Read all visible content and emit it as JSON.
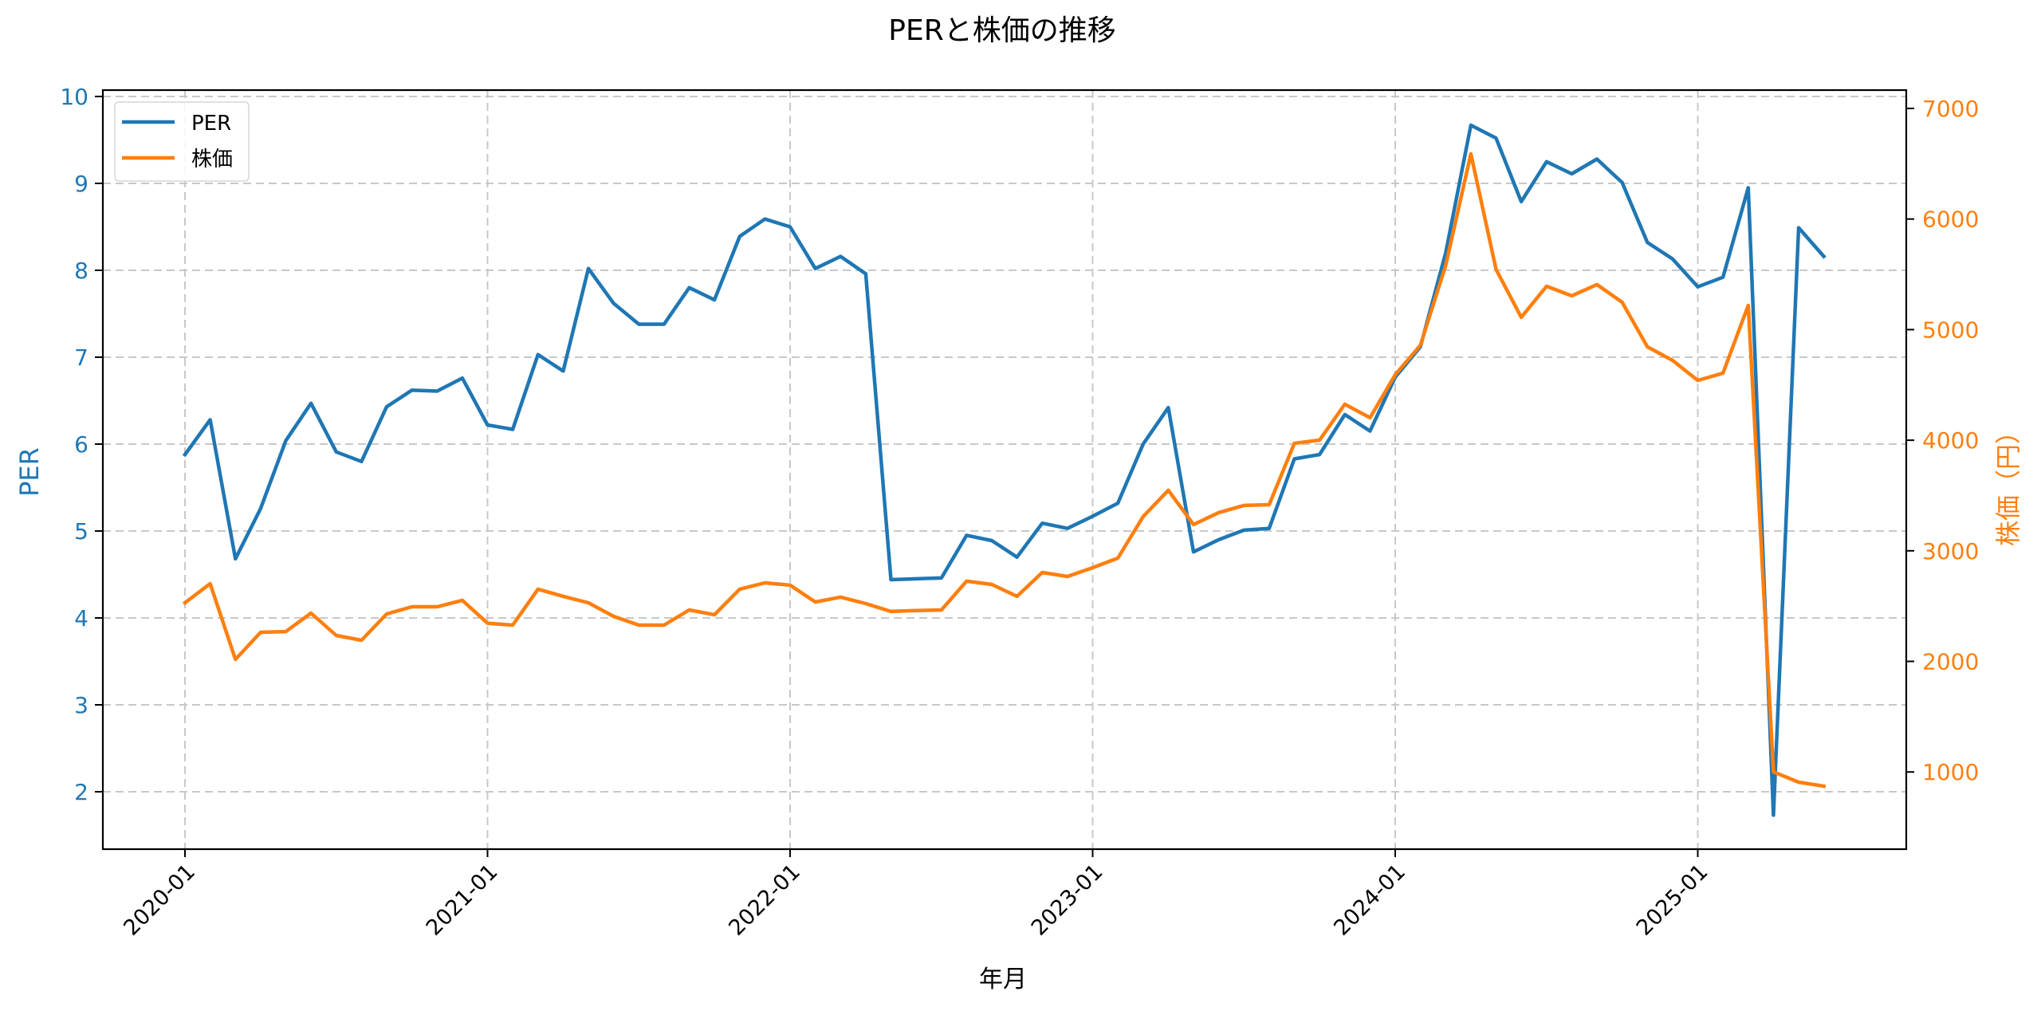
{
  "chart_data": {
    "type": "line",
    "title": "PERと株価の推移",
    "xlabel": "年月",
    "ylabel_left": "PER",
    "ylabel_right": "株価（円）",
    "x_tick_labels": [
      "2020-01",
      "2021-01",
      "2022-01",
      "2023-01",
      "2024-01",
      "2025-01"
    ],
    "y_left_ticks": [
      2,
      3,
      4,
      5,
      6,
      7,
      8,
      9,
      10
    ],
    "y_right_ticks": [
      1000,
      2000,
      3000,
      4000,
      5000,
      6000,
      7000
    ],
    "ylim_left": [
      1.34,
      10.07
    ],
    "ylim_right": [
      302,
      7166
    ],
    "grid": true,
    "grid_style": "dashed",
    "legend_position": "upper left",
    "colors": {
      "per": "#1f77b4",
      "price": "#ff7f0e",
      "grid": "#c8c8c8",
      "axis": "#000000"
    },
    "x": [
      "2020-01",
      "2020-02",
      "2020-03",
      "2020-04",
      "2020-05",
      "2020-06",
      "2020-07",
      "2020-08",
      "2020-09",
      "2020-10",
      "2020-11",
      "2020-12",
      "2021-01",
      "2021-02",
      "2021-03",
      "2021-04",
      "2021-05",
      "2021-06",
      "2021-07",
      "2021-08",
      "2021-09",
      "2021-10",
      "2021-11",
      "2021-12",
      "2022-01",
      "2022-02",
      "2022-03",
      "2022-04",
      "2022-05",
      "2022-06",
      "2022-07",
      "2022-08",
      "2022-09",
      "2022-10",
      "2022-11",
      "2022-12",
      "2023-01",
      "2023-02",
      "2023-03",
      "2023-04",
      "2023-05",
      "2023-06",
      "2023-07",
      "2023-08",
      "2023-09",
      "2023-10",
      "2023-11",
      "2023-12",
      "2024-01",
      "2024-02",
      "2024-03",
      "2024-04",
      "2024-05",
      "2024-06",
      "2024-07",
      "2024-08",
      "2024-09",
      "2024-10",
      "2024-11",
      "2024-12",
      "2025-01",
      "2025-02",
      "2025-03",
      "2025-04",
      "2025-05",
      "2025-06"
    ],
    "series": [
      {
        "name": "PER",
        "axis": "left",
        "values": [
          5.88,
          6.28,
          4.68,
          5.26,
          6.04,
          6.47,
          5.91,
          5.8,
          6.43,
          6.62,
          6.61,
          6.76,
          6.22,
          6.17,
          7.03,
          6.84,
          8.02,
          7.62,
          7.38,
          7.38,
          7.8,
          7.66,
          8.39,
          8.59,
          8.5,
          8.02,
          8.16,
          7.96,
          4.44,
          4.45,
          4.46,
          4.95,
          4.89,
          4.7,
          5.09,
          5.03,
          5.17,
          5.32,
          6.0,
          6.42,
          4.76,
          4.9,
          5.01,
          5.03,
          5.83,
          5.88,
          6.34,
          6.15,
          6.77,
          7.12,
          8.2,
          9.67,
          9.52,
          8.79,
          9.25,
          9.11,
          9.28,
          9.01,
          8.32,
          8.13,
          7.81,
          7.92,
          8.95,
          1.73,
          8.49,
          8.16
        ]
      },
      {
        "name": "株価",
        "axis": "right",
        "values": [
          2530,
          2703,
          2018,
          2263,
          2270,
          2436,
          2234,
          2191,
          2429,
          2494,
          2494,
          2552,
          2345,
          2328,
          2653,
          2588,
          2530,
          2407,
          2328,
          2328,
          2465,
          2422,
          2653,
          2710,
          2689,
          2537,
          2581,
          2523,
          2451,
          2460,
          2465,
          2725,
          2696,
          2588,
          2804,
          2768,
          2847,
          2934,
          3309,
          3547,
          3237,
          3345,
          3410,
          3417,
          3972,
          4001,
          4325,
          4203,
          4592,
          4859,
          5580,
          6589,
          5544,
          5111,
          5392,
          5306,
          5407,
          5248,
          4844,
          4722,
          4541,
          4606,
          5219,
          1001,
          908,
          872
        ]
      }
    ]
  },
  "legend": {
    "items": [
      {
        "label": "PER",
        "color": "#1f77b4"
      },
      {
        "label": "株価",
        "color": "#ff7f0e"
      }
    ]
  }
}
